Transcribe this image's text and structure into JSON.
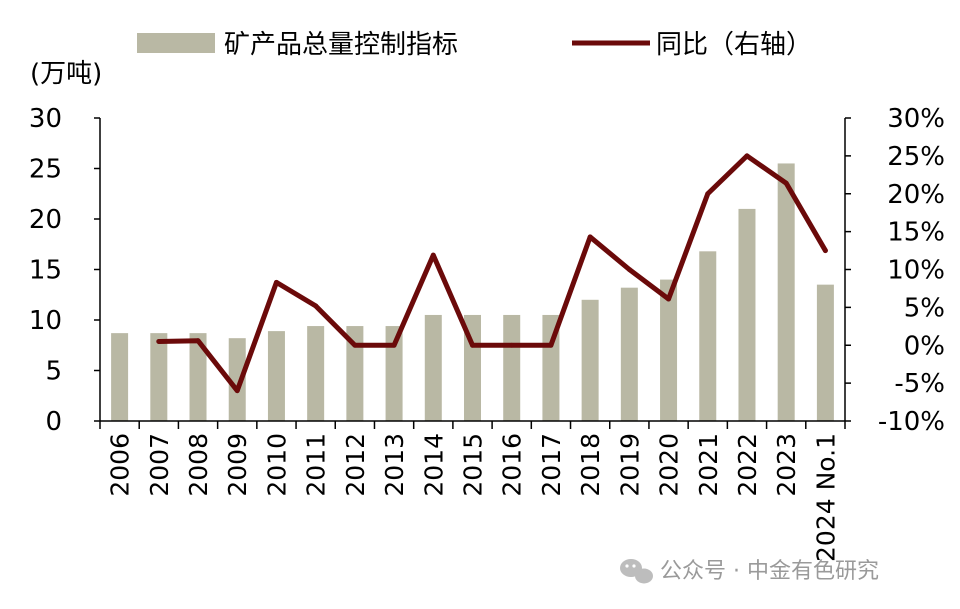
{
  "chart_data": {
    "type": "bar",
    "categories": [
      "2006",
      "2007",
      "2008",
      "2009",
      "2010",
      "2011",
      "2012",
      "2013",
      "2014",
      "2015",
      "2016",
      "2017",
      "2018",
      "2019",
      "2020",
      "2021",
      "2022",
      "2023",
      "2024 No.1"
    ],
    "series": [
      {
        "name": "矿产品总量控制指标",
        "type": "bar",
        "axis": "left",
        "color": "#b9b8a4",
        "values": [
          8.7,
          8.7,
          8.7,
          8.2,
          8.9,
          9.4,
          9.4,
          9.4,
          10.5,
          10.5,
          10.5,
          10.5,
          12.0,
          13.2,
          14.0,
          16.8,
          21.0,
          25.5,
          13.5
        ]
      },
      {
        "name": "同比（右轴）",
        "type": "line",
        "axis": "right",
        "color": "#6b0a0a",
        "values": [
          null,
          0.5,
          0.6,
          -6.0,
          8.3,
          5.2,
          0.0,
          0.0,
          11.9,
          0.0,
          0.0,
          0.0,
          14.3,
          10.0,
          6.1,
          20.0,
          25.0,
          21.4,
          12.5
        ]
      }
    ],
    "ylabel": "(万吨)",
    "ylim": [
      0,
      30
    ],
    "yticks": [
      "0",
      "5",
      "10",
      "15",
      "20",
      "25",
      "30"
    ],
    "y2lim": [
      -10,
      30
    ],
    "y2ticks": [
      "-10%",
      "-5%",
      "0%",
      "5%",
      "10%",
      "15%",
      "20%",
      "25%",
      "30%"
    ],
    "grid": false,
    "legend_position": "top"
  },
  "watermark": {
    "text": "公众号 · 中金有色研究",
    "icon": "wechat-icon"
  }
}
